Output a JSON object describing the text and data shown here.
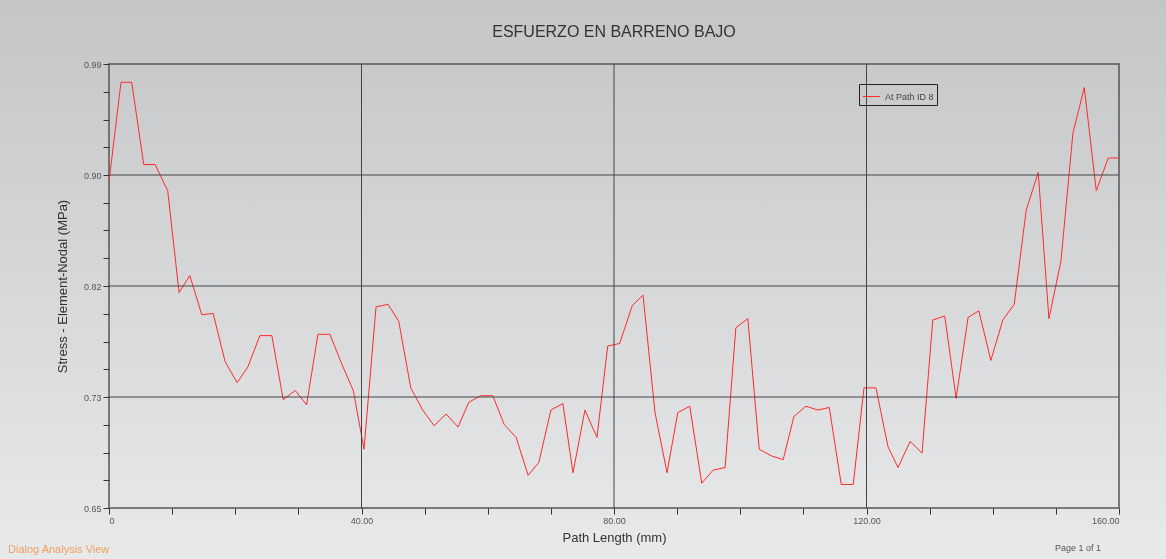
{
  "chart_data": {
    "type": "line",
    "title": "ESFUERZO EN BARRENO BAJO",
    "xlabel": "Path Length (mm)",
    "ylabel": "Stress - Element-Nodal (MPa)",
    "x": [
      0,
      1.9,
      3.6,
      5.5,
      7.3,
      9.3,
      11.1,
      12.8,
      14.7,
      16.5,
      18.4,
      20.3,
      22.0,
      23.9,
      25.8,
      27.6,
      29.5,
      31.3,
      33.1,
      35.0,
      36.9,
      38.7,
      40.4,
      42.3,
      44.2,
      45.9,
      47.8,
      49.7,
      51.5,
      53.4,
      55.3,
      57.0,
      58.9,
      60.8,
      62.6,
      64.5,
      66.4,
      68.1,
      70.0,
      71.9,
      73.5,
      75.4,
      77.3,
      79.0,
      80.9,
      82.9,
      84.6,
      86.5,
      88.4,
      90.1,
      92.0,
      93.9,
      95.7,
      97.6,
      99.3,
      101.2,
      103.0,
      104.9,
      106.8,
      108.5,
      110.4,
      112.3,
      114.1,
      116.0,
      117.9,
      119.6,
      121.5,
      123.4,
      125.0,
      126.9,
      128.8,
      130.5,
      132.4,
      134.2,
      136.1,
      137.8,
      139.7,
      141.6,
      143.4,
      145.3,
      147.2,
      148.9,
      150.8,
      152.7,
      154.5,
      156.4,
      158.3,
      160
    ],
    "series": [
      {
        "name": "At Path ID 8",
        "color": "#ff2a2a",
        "values": [
          0.9,
          0.976,
          0.976,
          0.913,
          0.913,
          0.893,
          0.815,
          0.828,
          0.798,
          0.799,
          0.762,
          0.746,
          0.758,
          0.782,
          0.782,
          0.733,
          0.74,
          0.729,
          0.783,
          0.783,
          0.76,
          0.74,
          0.695,
          0.804,
          0.806,
          0.793,
          0.742,
          0.725,
          0.713,
          0.722,
          0.712,
          0.731,
          0.736,
          0.736,
          0.714,
          0.704,
          0.675,
          0.685,
          0.725,
          0.73,
          0.677,
          0.725,
          0.704,
          0.774,
          0.776,
          0.805,
          0.813,
          0.723,
          0.677,
          0.723,
          0.728,
          0.669,
          0.679,
          0.681,
          0.788,
          0.795,
          0.695,
          0.69,
          0.687,
          0.72,
          0.728,
          0.725,
          0.727,
          0.668,
          0.668,
          0.742,
          0.742,
          0.697,
          0.681,
          0.701,
          0.692,
          0.794,
          0.797,
          0.734,
          0.796,
          0.801,
          0.763,
          0.794,
          0.806,
          0.878,
          0.907,
          0.795,
          0.839,
          0.937,
          0.972,
          0.893,
          0.918,
          0.918
        ]
      }
    ],
    "xlim": [
      0,
      160
    ],
    "xticks": [
      0,
      {
        "value": 10,
        "label": null
      },
      {
        "value": 20,
        "label": null
      },
      {
        "value": 30,
        "label": null
      },
      {
        "value": 40,
        "label": "40.00"
      },
      {
        "value": 50,
        "label": null
      },
      {
        "value": 60,
        "label": null
      },
      {
        "value": 70,
        "label": null
      },
      {
        "value": 80,
        "label": "80.00"
      },
      {
        "value": 90,
        "label": null
      },
      {
        "value": 100,
        "label": null
      },
      {
        "value": 110,
        "label": null
      },
      {
        "value": 120,
        "label": "120.00"
      },
      {
        "value": 130,
        "label": null
      },
      {
        "value": 140,
        "label": null
      },
      {
        "value": 150,
        "label": null
      },
      {
        "value": 160,
        "label": "160.00"
      }
    ],
    "ylim": [
      0.65,
      0.99
    ],
    "yticks": [
      0.65,
      {
        "value": 0.67125,
        "label": null
      },
      {
        "value": 0.6925,
        "label": null
      },
      {
        "value": 0.71375,
        "label": null
      },
      {
        "value": 0.735,
        "label": "0.73"
      },
      {
        "value": 0.75625,
        "label": null
      },
      {
        "value": 0.7775,
        "label": null
      },
      {
        "value": 0.79875,
        "label": null
      },
      0.82,
      {
        "value": 0.84125,
        "label": null
      },
      {
        "value": 0.8625,
        "label": null
      },
      {
        "value": 0.88375,
        "label": null
      },
      {
        "value": 0.905,
        "label": "0.90"
      },
      {
        "value": 0.92625,
        "label": null
      },
      {
        "value": 0.9475,
        "label": null
      },
      {
        "value": 0.96875,
        "label": null
      },
      0.99
    ],
    "grid": true,
    "legend": "top right",
    "marker": "none",
    "line_style": "solid",
    "annotations": [
      "Dialog Analysis View",
      "Page 1 of 1"
    ]
  }
}
